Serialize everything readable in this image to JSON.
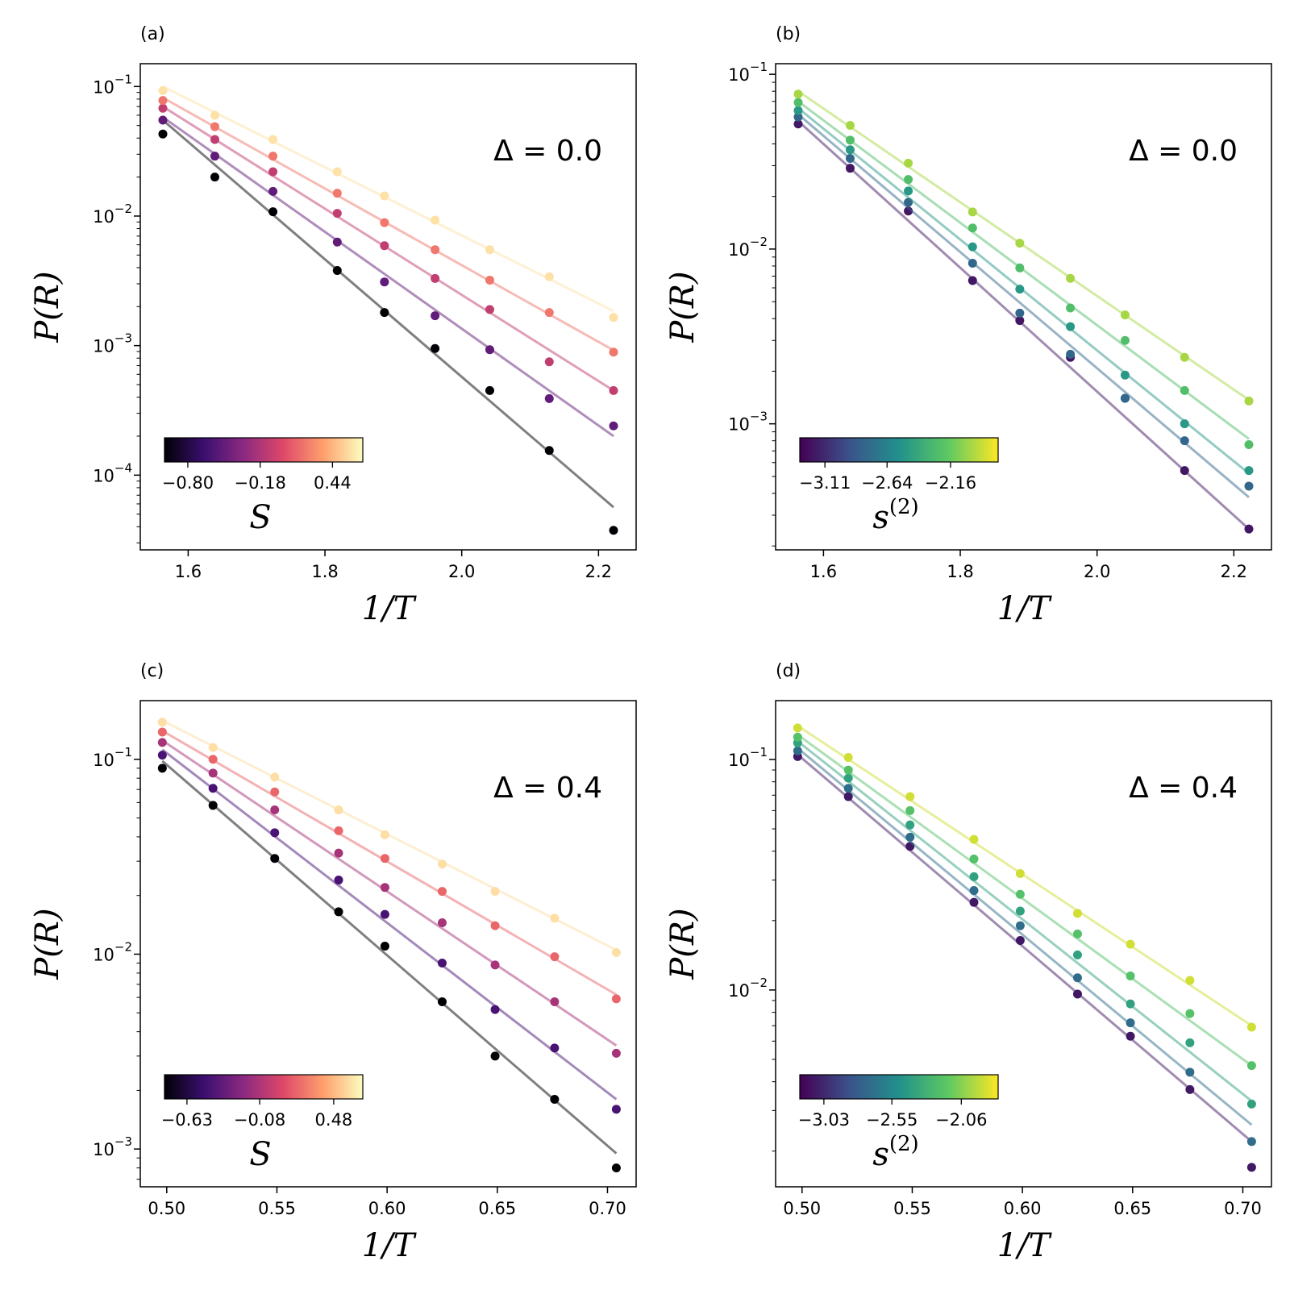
{
  "palettes": {
    "magma": [
      "#000004",
      "#3b0f70",
      "#8c2981",
      "#de4968",
      "#fe9f6d",
      "#fcfdbf"
    ],
    "viridis": [
      "#440154",
      "#3b528b",
      "#21918c",
      "#5ec962",
      "#fde725"
    ]
  },
  "chart_data": [
    {
      "type": "scatter",
      "panel": "(a)",
      "annotation": "Δ = 0.0",
      "xlabel": "1/T",
      "ylabel": "P(R)",
      "yscale": "log",
      "xlim": [
        1.53,
        2.255
      ],
      "ylim": [
        2.65e-05,
        0.15
      ],
      "xticks": [
        1.6,
        1.8,
        2.0,
        2.2
      ],
      "xtick_labels": [
        "1.6",
        "1.8",
        "2.0",
        "2.2"
      ],
      "ytick_exponents": [
        -1,
        -2,
        -3,
        -4
      ],
      "ytick_labels": [
        "10",
        "10",
        "10",
        "10"
      ],
      "colorbar": {
        "palette": "magma",
        "label": "S",
        "label_sup": "",
        "min": -1.0,
        "max": 0.7,
        "ticks": [
          -0.8,
          -0.18,
          0.44
        ],
        "tick_labels": [
          "−0.80",
          "−0.18",
          "0.44"
        ]
      },
      "x": [
        1.563,
        1.639,
        1.724,
        1.818,
        1.887,
        1.961,
        2.041,
        2.128,
        2.222
      ],
      "series": [
        {
          "cval": -1.0,
          "fit": [
            0.055,
            5.65e-05
          ],
          "values": [
            0.043,
            0.02,
            0.0108,
            0.0038,
            0.0018,
            0.00095,
            0.00045,
            0.000155,
            3.75e-05
          ]
        },
        {
          "cval": -0.5,
          "fit": [
            0.058,
            0.0002
          ],
          "values": [
            0.055,
            0.029,
            0.0155,
            0.0063,
            0.0031,
            0.0017,
            0.00093,
            0.00039,
            0.00024
          ]
        },
        {
          "cval": -0.1,
          "fit": [
            0.07,
            0.00045
          ],
          "values": [
            0.068,
            0.039,
            0.022,
            0.0105,
            0.0059,
            0.0033,
            0.0019,
            0.00075,
            0.00045
          ]
        },
        {
          "cval": 0.2,
          "fit": [
            0.082,
            0.00092
          ],
          "values": [
            0.078,
            0.049,
            0.029,
            0.015,
            0.0089,
            0.0055,
            0.0032,
            0.0018,
            0.00089
          ]
        },
        {
          "cval": 0.6,
          "fit": [
            0.1,
            0.00185
          ],
          "values": [
            0.093,
            0.06,
            0.039,
            0.022,
            0.0143,
            0.0093,
            0.0055,
            0.0034,
            0.00165
          ]
        }
      ]
    },
    {
      "type": "scatter",
      "panel": "(b)",
      "annotation": "Δ = 0.0",
      "xlabel": "1/T",
      "ylabel": "P(R)",
      "yscale": "log",
      "xlim": [
        1.53,
        2.255
      ],
      "ylim": [
        0.00019,
        0.115
      ],
      "xticks": [
        1.6,
        1.8,
        2.0,
        2.2
      ],
      "xtick_labels": [
        "1.6",
        "1.8",
        "2.0",
        "2.2"
      ],
      "ytick_exponents": [
        -1,
        -2,
        -3
      ],
      "ytick_labels": [
        "10",
        "10",
        "10"
      ],
      "colorbar": {
        "palette": "viridis",
        "label": "s",
        "label_sup": "(2)",
        "min": -3.3,
        "max": -1.8,
        "ticks": [
          -3.11,
          -2.64,
          -2.16
        ],
        "tick_labels": [
          "−3.11",
          "−2.64",
          "−2.16"
        ]
      },
      "x": [
        1.563,
        1.639,
        1.724,
        1.818,
        1.887,
        1.961,
        2.041,
        2.128,
        2.222
      ],
      "series": [
        {
          "cval": -3.2,
          "fit": [
            0.054,
            0.00025
          ],
          "values": [
            0.052,
            0.029,
            0.0165,
            0.0066,
            0.0039,
            0.0024,
            0.0014,
            0.00054,
            0.00025
          ]
        },
        {
          "cval": -2.8,
          "fit": [
            0.059,
            0.00038
          ],
          "values": [
            0.057,
            0.033,
            0.0185,
            0.0083,
            0.0043,
            0.0025,
            0.0014,
            0.0008,
            0.00044
          ]
        },
        {
          "cval": -2.5,
          "fit": [
            0.064,
            0.00052
          ],
          "values": [
            0.062,
            0.037,
            0.0215,
            0.0103,
            0.0059,
            0.0036,
            0.0019,
            0.001,
            0.00054
          ]
        },
        {
          "cval": -2.25,
          "fit": [
            0.07,
            0.00082
          ],
          "values": [
            0.069,
            0.042,
            0.025,
            0.0132,
            0.0078,
            0.0046,
            0.003,
            0.00155,
            0.00076
          ]
        },
        {
          "cval": -2.0,
          "fit": [
            0.08,
            0.00137
          ],
          "values": [
            0.077,
            0.051,
            0.031,
            0.0163,
            0.0108,
            0.0068,
            0.0042,
            0.0024,
            0.00135
          ]
        }
      ]
    },
    {
      "type": "scatter",
      "panel": "(c)",
      "annotation": "Δ = 0.4",
      "xlabel": "1/T",
      "ylabel": "P(R)",
      "yscale": "log",
      "xlim": [
        0.488,
        0.713
      ],
      "ylim": [
        0.00064,
        0.2
      ],
      "xticks": [
        0.5,
        0.55,
        0.6,
        0.65,
        0.7
      ],
      "xtick_labels": [
        "0.50",
        "0.55",
        "0.60",
        "0.65",
        "0.70"
      ],
      "ytick_exponents": [
        -1,
        -2,
        -3
      ],
      "ytick_labels": [
        "10",
        "10",
        "10"
      ],
      "colorbar": {
        "palette": "magma",
        "label": "S",
        "label_sup": "",
        "min": -0.8,
        "max": 0.7,
        "ticks": [
          -0.63,
          -0.08,
          0.48
        ],
        "tick_labels": [
          "−0.63",
          "−0.08",
          "0.48"
        ]
      },
      "x": [
        0.498,
        0.521,
        0.549,
        0.578,
        0.599,
        0.625,
        0.649,
        0.676,
        0.704
      ],
      "series": [
        {
          "cval": -0.8,
          "fit": [
            0.098,
            0.00095
          ],
          "values": [
            0.09,
            0.058,
            0.031,
            0.0165,
            0.011,
            0.0057,
            0.003,
            0.0018,
            0.0008
          ]
        },
        {
          "cval": -0.45,
          "fit": [
            0.112,
            0.0018
          ],
          "values": [
            0.105,
            0.071,
            0.042,
            0.024,
            0.016,
            0.009,
            0.0052,
            0.0033,
            0.0016
          ]
        },
        {
          "cval": -0.1,
          "fit": [
            0.125,
            0.0034
          ],
          "values": [
            0.122,
            0.085,
            0.055,
            0.033,
            0.022,
            0.0145,
            0.0088,
            0.0057,
            0.0031
          ]
        },
        {
          "cval": 0.2,
          "fit": [
            0.14,
            0.0062
          ],
          "values": [
            0.138,
            0.1,
            0.068,
            0.043,
            0.031,
            0.021,
            0.014,
            0.0097,
            0.0059
          ]
        },
        {
          "cval": 0.6,
          "fit": [
            0.158,
            0.0105
          ],
          "values": [
            0.155,
            0.115,
            0.081,
            0.055,
            0.041,
            0.029,
            0.021,
            0.0153,
            0.0102
          ]
        }
      ]
    },
    {
      "type": "scatter",
      "panel": "(d)",
      "annotation": "Δ = 0.4",
      "xlabel": "1/T",
      "ylabel": "P(R)",
      "yscale": "log",
      "xlim": [
        0.488,
        0.713
      ],
      "ylim": [
        0.0014,
        0.18
      ],
      "xticks": [
        0.5,
        0.55,
        0.6,
        0.65,
        0.7
      ],
      "xtick_labels": [
        "0.50",
        "0.55",
        "0.60",
        "0.65",
        "0.70"
      ],
      "ytick_exponents": [
        -1,
        -2
      ],
      "ytick_labels": [
        "10",
        "10"
      ],
      "colorbar": {
        "palette": "viridis",
        "label": "s",
        "label_sup": "(2)",
        "min": -3.2,
        "max": -1.8,
        "ticks": [
          -3.03,
          -2.55,
          -2.06
        ],
        "tick_labels": [
          "−3.03",
          "−2.55",
          "−2.06"
        ]
      },
      "x": [
        0.498,
        0.521,
        0.549,
        0.578,
        0.599,
        0.625,
        0.649,
        0.676,
        0.704
      ],
      "series": [
        {
          "cval": -3.1,
          "fit": [
            0.105,
            0.0022
          ],
          "values": [
            0.103,
            0.069,
            0.042,
            0.024,
            0.0164,
            0.0096,
            0.0063,
            0.0037,
            0.0017
          ]
        },
        {
          "cval": -2.7,
          "fit": [
            0.112,
            0.0026
          ],
          "values": [
            0.109,
            0.075,
            0.046,
            0.027,
            0.019,
            0.0113,
            0.0072,
            0.0044,
            0.0022
          ]
        },
        {
          "cval": -2.4,
          "fit": [
            0.12,
            0.0033
          ],
          "values": [
            0.118,
            0.083,
            0.052,
            0.031,
            0.022,
            0.0142,
            0.0087,
            0.0059,
            0.0032
          ]
        },
        {
          "cval": -2.2,
          "fit": [
            0.128,
            0.0047
          ],
          "values": [
            0.125,
            0.09,
            0.06,
            0.037,
            0.026,
            0.0175,
            0.0115,
            0.0079,
            0.0047
          ]
        },
        {
          "cval": -1.9,
          "fit": [
            0.14,
            0.007
          ],
          "values": [
            0.137,
            0.102,
            0.069,
            0.045,
            0.032,
            0.0215,
            0.0158,
            0.011,
            0.0069
          ]
        }
      ]
    }
  ]
}
